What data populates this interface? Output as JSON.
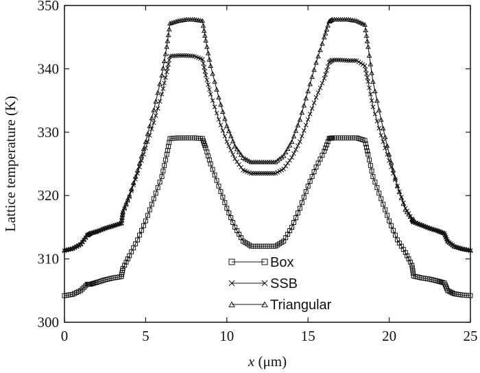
{
  "chart_data": {
    "type": "line",
    "title": "",
    "xlabel_var": "x",
    "xlabel_unit": " (μm)",
    "ylabel": "Lattice temperature (K)",
    "xlim": [
      0,
      25
    ],
    "ylim": [
      300,
      350
    ],
    "xticks": [
      0,
      5,
      10,
      15,
      20,
      25
    ],
    "yticks": [
      300,
      310,
      320,
      330,
      340,
      350
    ],
    "grid": false,
    "legend_position": "bottom-center",
    "series": [
      {
        "name": "Box",
        "marker": "square",
        "x": [
          0,
          0.5,
          1.0,
          1.4,
          1.6,
          2.0,
          2.5,
          3.0,
          3.5,
          3.6,
          4.0,
          4.5,
          5.0,
          5.5,
          6.0,
          6.3,
          6.5,
          7.0,
          7.5,
          8.0,
          8.5,
          8.7,
          9.0,
          9.5,
          10.0,
          10.5,
          11.0,
          11.5,
          12.0,
          12.5,
          13.0,
          13.5,
          14.0,
          14.5,
          15.0,
          15.5,
          16.0,
          16.3,
          16.5,
          17.0,
          17.5,
          18.0,
          18.5,
          18.7,
          19.0,
          19.5,
          20.0,
          20.5,
          21.0,
          21.4,
          21.5,
          22.0,
          22.5,
          23.0,
          23.4,
          23.6,
          24.0,
          24.5,
          25.0
        ],
        "y": [
          304.2,
          304.4,
          305.0,
          306.0,
          306.0,
          306.3,
          306.7,
          307.0,
          307.2,
          308.5,
          310.5,
          313.0,
          316.0,
          319.5,
          323.0,
          326.5,
          329.0,
          329.1,
          329.1,
          329.1,
          329.0,
          327.5,
          325.0,
          321.5,
          318.0,
          315.0,
          312.8,
          312.0,
          312.0,
          312.0,
          312.0,
          312.8,
          315.0,
          318.0,
          321.5,
          324.5,
          327.0,
          329.0,
          329.1,
          329.1,
          329.1,
          329.1,
          328.7,
          326.5,
          323.0,
          319.5,
          316.0,
          313.0,
          311.0,
          309.0,
          307.3,
          307.0,
          306.8,
          306.5,
          306.2,
          305.0,
          304.5,
          304.3,
          304.2
        ]
      },
      {
        "name": "SSB",
        "marker": "x",
        "x": [
          0,
          0.5,
          1.0,
          1.4,
          1.6,
          2.0,
          2.5,
          3.0,
          3.5,
          3.6,
          4.0,
          4.5,
          5.0,
          5.5,
          6.0,
          6.3,
          6.5,
          7.0,
          7.5,
          8.0,
          8.5,
          8.7,
          9.0,
          9.5,
          10.0,
          10.5,
          11.0,
          11.5,
          12.0,
          12.5,
          13.0,
          13.5,
          14.0,
          14.5,
          15.0,
          15.5,
          16.0,
          16.3,
          16.5,
          17.0,
          17.5,
          18.0,
          18.5,
          18.7,
          19.0,
          19.5,
          20.0,
          20.5,
          21.0,
          21.4,
          21.5,
          22.0,
          22.5,
          23.0,
          23.4,
          23.6,
          24.0,
          24.5,
          25.0
        ],
        "y": [
          311.3,
          311.6,
          312.3,
          313.7,
          314.0,
          314.3,
          314.8,
          315.2,
          315.6,
          317.3,
          319.8,
          323.5,
          327.5,
          331.5,
          336.0,
          339.5,
          342.0,
          342.1,
          342.1,
          342.0,
          341.5,
          339.0,
          336.0,
          332.0,
          328.5,
          325.8,
          324.0,
          323.5,
          323.5,
          323.5,
          323.5,
          324.2,
          326.0,
          328.5,
          332.0,
          335.5,
          338.5,
          341.0,
          341.4,
          341.4,
          341.3,
          341.3,
          340.5,
          338.0,
          334.0,
          329.5,
          325.5,
          321.5,
          318.0,
          316.3,
          315.8,
          315.3,
          314.8,
          314.4,
          314.0,
          312.8,
          312.0,
          311.6,
          311.3
        ]
      },
      {
        "name": "Triangular",
        "marker": "triangle",
        "x": [
          0,
          0.5,
          1.0,
          1.4,
          1.6,
          2.0,
          2.5,
          3.0,
          3.5,
          3.6,
          4.0,
          4.5,
          5.0,
          5.5,
          6.0,
          6.3,
          6.5,
          7.0,
          7.5,
          8.0,
          8.5,
          8.7,
          9.0,
          9.5,
          10.0,
          10.5,
          11.0,
          11.5,
          12.0,
          12.5,
          13.0,
          13.5,
          14.0,
          14.5,
          15.0,
          15.5,
          16.0,
          16.3,
          16.5,
          17.0,
          17.5,
          18.0,
          18.5,
          18.7,
          19.0,
          19.5,
          20.0,
          20.5,
          21.0,
          21.4,
          21.5,
          22.0,
          22.5,
          23.0,
          23.4,
          23.6,
          24.0,
          24.5,
          25.0
        ],
        "y": [
          311.4,
          311.7,
          312.4,
          313.8,
          314.1,
          314.4,
          314.9,
          315.3,
          315.7,
          317.5,
          320.0,
          324.0,
          328.5,
          333.5,
          339.0,
          343.5,
          347.2,
          347.6,
          347.8,
          347.8,
          347.6,
          344.5,
          340.5,
          335.5,
          331.0,
          327.8,
          326.0,
          325.3,
          325.3,
          325.3,
          325.3,
          326.3,
          328.5,
          332.0,
          336.5,
          341.0,
          345.0,
          347.5,
          347.8,
          347.8,
          347.8,
          347.6,
          347.0,
          343.5,
          338.0,
          332.0,
          326.5,
          321.5,
          317.8,
          316.3,
          315.9,
          315.4,
          314.9,
          314.5,
          314.1,
          312.8,
          312.0,
          311.6,
          311.4
        ]
      }
    ]
  }
}
